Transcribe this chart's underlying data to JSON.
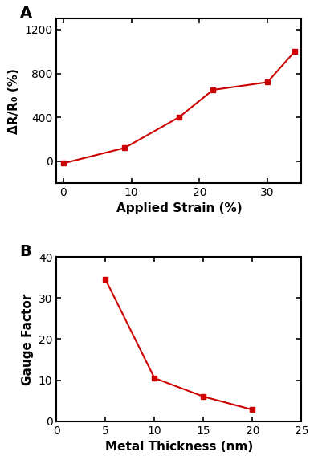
{
  "plot_A": {
    "x": [
      0,
      9,
      17,
      22,
      30,
      34
    ],
    "y": [
      -20,
      120,
      400,
      650,
      720,
      1000
    ],
    "xlabel": "Applied Strain (%)",
    "ylabel": "ΔR/R₀ (%)",
    "xlim": [
      -1,
      35
    ],
    "ylim": [
      -200,
      1300
    ],
    "xticks": [
      0,
      10,
      20,
      30
    ],
    "yticks": [
      0,
      400,
      800,
      1200
    ],
    "label": "A",
    "color": "#cc0000",
    "marker": "s",
    "markersize": 5,
    "linewidth": 1.5
  },
  "plot_B": {
    "x": [
      5,
      10,
      15,
      20
    ],
    "y": [
      34.5,
      10.5,
      6.0,
      2.8
    ],
    "xlabel": "Metal Thickness (nm)",
    "ylabel": "Gauge Factor",
    "xlim": [
      0,
      25
    ],
    "ylim": [
      0,
      40
    ],
    "xticks": [
      0,
      5,
      10,
      15,
      20,
      25
    ],
    "yticks": [
      0,
      10,
      20,
      30,
      40
    ],
    "label": "B",
    "color": "#cc0000",
    "marker": "s",
    "markersize": 5,
    "linewidth": 1.5
  },
  "background_color": "#ffffff",
  "figure_width": 3.91,
  "figure_height": 5.83,
  "dpi": 100,
  "xlabel_fontsize": 11,
  "ylabel_fontsize": 11,
  "tick_labelsize": 10,
  "label_fontsize": 14
}
